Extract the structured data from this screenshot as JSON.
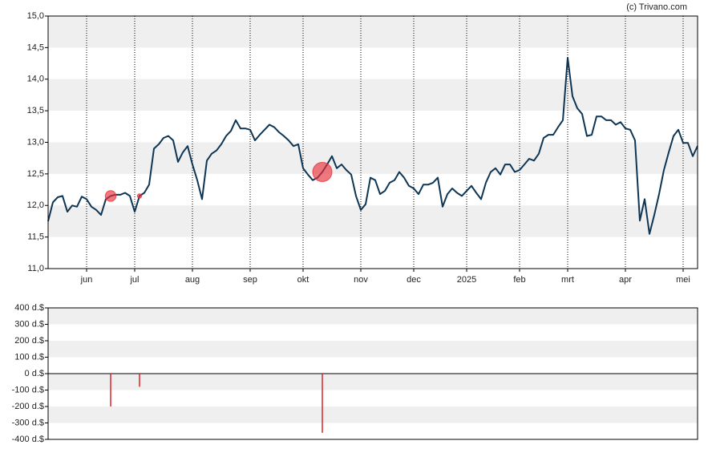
{
  "credit": "(c) Trivano.com",
  "chart_data": [
    {
      "type": "line",
      "color": "#0e3553",
      "marker_color": "#e8303a",
      "band_color": "#efefef",
      "bands": true,
      "month_grid": "dotted",
      "ylim": [
        11,
        15
      ],
      "yticks": [
        {
          "value": 11,
          "label": "11,0"
        },
        {
          "value": 11.5,
          "label": "11,5"
        },
        {
          "value": 12,
          "label": "12,0"
        },
        {
          "value": 12.5,
          "label": "12,5"
        },
        {
          "value": 13,
          "label": "13,0"
        },
        {
          "value": 13.5,
          "label": "13,5"
        },
        {
          "value": 14,
          "label": "14,0"
        },
        {
          "value": 14.5,
          "label": "14,5"
        },
        {
          "value": 15,
          "label": "15,0"
        }
      ],
      "categories": [
        null,
        null,
        null,
        null,
        null,
        null,
        null,
        null,
        "jun",
        null,
        null,
        null,
        null,
        null,
        null,
        null,
        null,
        null,
        "jul",
        null,
        null,
        null,
        null,
        null,
        null,
        null,
        null,
        null,
        null,
        null,
        "aug",
        null,
        null,
        null,
        null,
        null,
        null,
        null,
        null,
        null,
        null,
        null,
        "sep",
        null,
        null,
        null,
        null,
        null,
        null,
        null,
        null,
        null,
        null,
        "okt",
        null,
        null,
        null,
        null,
        null,
        null,
        null,
        null,
        null,
        null,
        null,
        "nov",
        null,
        null,
        null,
        null,
        null,
        null,
        null,
        null,
        null,
        null,
        "dec",
        null,
        null,
        null,
        null,
        null,
        null,
        null,
        null,
        null,
        null,
        "2025",
        null,
        null,
        null,
        null,
        null,
        null,
        null,
        null,
        null,
        null,
        "feb",
        null,
        null,
        null,
        null,
        null,
        null,
        null,
        null,
        null,
        "mrt",
        null,
        null,
        null,
        null,
        null,
        null,
        null,
        null,
        null,
        null,
        null,
        "apr",
        null,
        null,
        null,
        null,
        null,
        null,
        null,
        null,
        null,
        null,
        null,
        "mei",
        null,
        null,
        null
      ],
      "values": [
        11.75,
        12.05,
        12.13,
        12.15,
        11.9,
        12.0,
        11.98,
        12.14,
        12.1,
        11.98,
        11.93,
        11.85,
        12.1,
        12.15,
        12.17,
        12.17,
        12.2,
        12.15,
        11.9,
        12.15,
        12.2,
        12.33,
        12.9,
        12.97,
        13.07,
        13.1,
        13.03,
        12.69,
        12.84,
        12.94,
        12.65,
        12.4,
        12.1,
        12.71,
        12.82,
        12.87,
        12.97,
        13.1,
        13.18,
        13.35,
        13.22,
        13.22,
        13.2,
        13.03,
        13.12,
        13.2,
        13.28,
        13.24,
        13.16,
        13.1,
        13.03,
        12.94,
        12.97,
        12.59,
        12.49,
        12.4,
        12.44,
        12.53,
        12.65,
        12.78,
        12.59,
        12.65,
        12.56,
        12.49,
        12.15,
        11.93,
        12.02,
        12.44,
        12.4,
        12.18,
        12.23,
        12.36,
        12.4,
        12.53,
        12.44,
        12.31,
        12.27,
        12.18,
        12.33,
        12.33,
        12.36,
        12.44,
        11.98,
        12.18,
        12.27,
        12.2,
        12.15,
        12.23,
        12.31,
        12.2,
        12.1,
        12.36,
        12.53,
        12.59,
        12.49,
        12.65,
        12.65,
        12.53,
        12.56,
        12.65,
        12.74,
        12.71,
        12.82,
        13.07,
        13.12,
        13.12,
        13.24,
        13.35,
        14.34,
        13.73,
        13.54,
        13.45,
        13.1,
        13.12,
        13.41,
        13.41,
        13.35,
        13.35,
        13.28,
        13.32,
        13.22,
        13.2,
        13.03,
        11.76,
        12.1,
        11.55,
        11.85,
        12.18,
        12.56,
        12.84,
        13.1,
        13.2,
        12.99,
        12.99,
        12.78,
        12.94
      ]
    },
    {
      "type": "bar",
      "color": "#e0202a",
      "band_color": "#efefef",
      "bands": true,
      "ylim": [
        -400,
        400
      ],
      "yticks": [
        {
          "value": -400,
          "label": "-400 d.$"
        },
        {
          "value": -300,
          "label": "-300 d.$"
        },
        {
          "value": -200,
          "label": "-200 d.$"
        },
        {
          "value": -100,
          "label": "-100 d.$"
        },
        {
          "value": 0,
          "label": "0 d.$"
        },
        {
          "value": 100,
          "label": "100 d.$"
        },
        {
          "value": 200,
          "label": "200 d.$"
        },
        {
          "value": 300,
          "label": "300 d.$"
        },
        {
          "value": 400,
          "label": "400 d.$"
        }
      ],
      "values": [
        null,
        null,
        null,
        null,
        null,
        null,
        null,
        null,
        null,
        null,
        null,
        null,
        null,
        -200,
        null,
        null,
        null,
        null,
        null,
        -80,
        null,
        null,
        null,
        null,
        null,
        null,
        null,
        null,
        null,
        null,
        null,
        null,
        null,
        null,
        null,
        null,
        null,
        null,
        null,
        null,
        null,
        null,
        null,
        null,
        null,
        null,
        null,
        null,
        null,
        null,
        null,
        null,
        null,
        null,
        null,
        null,
        null,
        -360,
        null,
        null,
        null,
        null,
        null,
        null,
        null,
        null,
        null,
        null,
        null,
        null,
        null,
        null,
        null,
        null,
        null,
        null,
        null,
        null,
        null,
        null,
        null,
        null,
        null,
        null,
        null,
        null,
        null,
        null,
        null,
        null,
        null,
        null,
        null,
        null,
        null,
        null,
        null,
        null,
        null,
        null,
        null,
        null,
        null,
        null,
        null,
        null,
        null,
        null,
        null,
        null,
        null,
        null,
        null,
        null,
        null,
        null,
        null,
        null,
        null,
        null,
        null,
        null,
        null,
        null,
        null,
        null,
        null,
        null,
        null,
        null,
        null,
        null,
        null,
        null,
        null,
        null
      ]
    }
  ]
}
